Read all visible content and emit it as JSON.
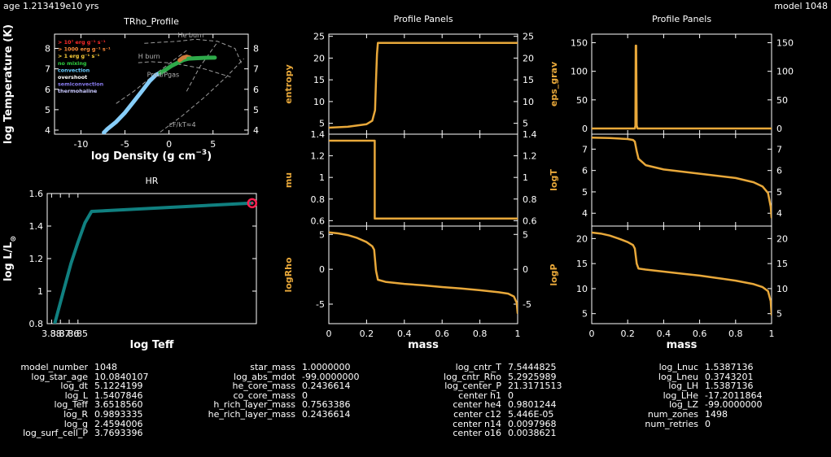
{
  "header": {
    "age": "age 1.213419e10 yrs",
    "model": "model 1048"
  },
  "chart_data": [
    {
      "id": "trho",
      "type": "line",
      "title": "TRho_Profile",
      "xlabel": "log Density (g cm",
      "xlabel_sup": "−3",
      "xlabel_end": ")",
      "ylabel": "log Temperature (K)",
      "xlim": [
        -13,
        9
      ],
      "ylim": [
        3.8,
        8.7
      ],
      "xticks": [
        "-10",
        "-5",
        "0",
        "5"
      ],
      "xtick_values": [
        -10,
        -5,
        0,
        5
      ],
      "yticks": [
        "4",
        "5",
        "6",
        "7",
        "8"
      ],
      "ytick_values": [
        4,
        5,
        6,
        7,
        8
      ],
      "legend": [
        {
          "label": "> 10⁷ erg g⁻¹ s⁻¹",
          "color": "#ff2a2a"
        },
        {
          "label": "> 1000 erg g⁻¹ s⁻¹",
          "color": "#ff8c3a"
        },
        {
          "label": "> 1 erg g⁻¹ s⁻¹",
          "color": "#ffd23a"
        },
        {
          "label": "no mixing",
          "color": "#2ecc40"
        },
        {
          "label": "convection",
          "color": "#66ccff"
        },
        {
          "label": "overshoot",
          "color": "#ffffff"
        },
        {
          "label": "semiconvection",
          "color": "#8a7cf0"
        },
        {
          "label": "thermohaline",
          "color": "#c8c8ff"
        }
      ],
      "annotations": [
        {
          "text": "He burn",
          "x": 1.0,
          "y": 8.55
        },
        {
          "text": "H burn",
          "x": -3.5,
          "y": 7.5
        },
        {
          "text": "Prad/Pgas",
          "x": -2.5,
          "y": 6.6
        },
        {
          "text": "εF/kT≈4",
          "x": 0.0,
          "y": 4.15
        }
      ],
      "series": [
        {
          "color": "#87cefa",
          "x": [
            -7.4,
            -7.0,
            -6.0,
            -5.0,
            -4.0,
            -3.0,
            -2.2,
            -1.5,
            -1.0
          ],
          "y": [
            3.88,
            4.05,
            4.4,
            4.85,
            5.4,
            5.95,
            6.4,
            6.7,
            6.8
          ]
        },
        {
          "color": "#2eaa4a",
          "x": [
            -1.0,
            -0.4,
            0.3,
            1.0,
            1.6,
            2.2
          ],
          "y": [
            6.8,
            6.95,
            7.15,
            7.3,
            7.43,
            7.5
          ]
        },
        {
          "color": "#d07c3c",
          "x": [
            1.2,
            1.6,
            2.0,
            2.4
          ],
          "y": [
            7.42,
            7.55,
            7.6,
            7.55
          ]
        },
        {
          "color": "#2eaa4a",
          "x": [
            2.2,
            3.0,
            4.0,
            5.2
          ],
          "y": [
            7.5,
            7.52,
            7.54,
            7.55
          ]
        }
      ],
      "guides": [
        {
          "x": [
            -2.8,
            -1.0,
            1.0,
            3.0,
            5.5,
            7.5,
            8.3
          ],
          "y": [
            8.25,
            8.3,
            8.35,
            8.45,
            8.35,
            8.0,
            7.2
          ]
        },
        {
          "x": [
            -3.5,
            -2.0,
            -0.2,
            1.5,
            4.0,
            7.0
          ],
          "y": [
            7.3,
            7.35,
            7.3,
            7.2,
            7.0,
            6.6
          ]
        },
        {
          "x": [
            -6.0,
            -4.0,
            -2.0,
            0.0,
            2.0
          ],
          "y": [
            5.3,
            5.9,
            6.6,
            7.25,
            7.9
          ]
        },
        {
          "x": [
            -1.0,
            1.5,
            4.0,
            6.5,
            8.5
          ],
          "y": [
            3.9,
            4.7,
            5.6,
            6.6,
            7.5
          ]
        },
        {
          "x": [
            2.0,
            3.5,
            5.5
          ],
          "y": [
            5.9,
            7.1,
            8.3
          ]
        }
      ]
    },
    {
      "id": "hr",
      "type": "line",
      "title": "HR",
      "xlabel": "log Teff",
      "ylabel": "log L/L",
      "ylabel_sub": "⊙",
      "xlim": [
        3.885,
        3.647
      ],
      "ylim": [
        0.8,
        1.6
      ],
      "xticks": [
        "3.88",
        "3.87",
        "3.86",
        "3.85"
      ],
      "xtick_values": [
        3.88,
        3.87,
        3.86,
        3.85
      ],
      "yticks": [
        "0.8",
        "1",
        "1.2",
        "1.4",
        "1.6"
      ],
      "ytick_values": [
        0.8,
        1.0,
        1.2,
        1.4,
        1.6
      ],
      "series": [
        {
          "color": "#108080",
          "x": [
            3.8765,
            3.8725,
            3.866,
            3.858,
            3.85,
            3.842,
            3.8345,
            3.6518
          ],
          "y": [
            0.8,
            0.88,
            1.01,
            1.17,
            1.3,
            1.42,
            1.49,
            1.5408
          ]
        }
      ],
      "current_point": {
        "x": 3.6518,
        "y": 1.5408,
        "color": "#ff2050"
      }
    },
    {
      "id": "entropy",
      "type": "line",
      "title": "Profile Panels",
      "ylabel": "entropy",
      "xlim": [
        0,
        1
      ],
      "ylim": [
        2.5,
        25.5
      ],
      "yticks": [
        "5",
        "10",
        "15",
        "20",
        "25"
      ],
      "ytick_values": [
        5,
        10,
        15,
        20,
        25
      ],
      "series": [
        {
          "color": "#e8a83a",
          "x": [
            0,
            0.1,
            0.2,
            0.23,
            0.245,
            0.25,
            0.255,
            0.26,
            0.3,
            0.6,
            1.0
          ],
          "y": [
            4.0,
            4.2,
            4.8,
            5.6,
            8.0,
            15.0,
            21.0,
            23.5,
            23.5,
            23.5,
            23.5
          ]
        }
      ]
    },
    {
      "id": "mu",
      "type": "line",
      "ylabel": "mu",
      "xlim": [
        0,
        1
      ],
      "ylim": [
        0.55,
        1.4
      ],
      "yticks": [
        "0.6",
        "0.8",
        "1",
        "1.2",
        "1.4"
      ],
      "ytick_values": [
        0.6,
        0.8,
        1.0,
        1.2,
        1.4
      ],
      "series": [
        {
          "color": "#e8a83a",
          "x": [
            0,
            0.2,
            0.243,
            0.243,
            0.3,
            0.6,
            1.0
          ],
          "y": [
            1.34,
            1.34,
            1.34,
            0.62,
            0.62,
            0.62,
            0.62
          ]
        }
      ]
    },
    {
      "id": "logrho",
      "type": "line",
      "xlabel": "mass",
      "ylabel": "logRho",
      "xlim": [
        0,
        1
      ],
      "ylim": [
        -7.8,
        6.2
      ],
      "xticks": [
        "0",
        "0.2",
        "0.4",
        "0.6",
        "0.8",
        "1"
      ],
      "xtick_values": [
        0,
        0.2,
        0.4,
        0.6,
        0.8,
        1.0
      ],
      "yticks": [
        "-5",
        "0",
        "5"
      ],
      "ytick_values": [
        -5,
        0,
        5
      ],
      "series": [
        {
          "color": "#e8a83a",
          "x": [
            0,
            0.05,
            0.1,
            0.15,
            0.2,
            0.23,
            0.24,
            0.25,
            0.26,
            0.3,
            0.4,
            0.5,
            0.6,
            0.7,
            0.8,
            0.9,
            0.95,
            0.98,
            0.995,
            1.0
          ],
          "y": [
            5.3,
            5.15,
            4.9,
            4.5,
            3.9,
            3.3,
            2.8,
            -0.2,
            -1.5,
            -1.8,
            -2.1,
            -2.3,
            -2.55,
            -2.75,
            -3.0,
            -3.3,
            -3.5,
            -3.9,
            -4.8,
            -6.3
          ]
        }
      ]
    },
    {
      "id": "eps_grav",
      "type": "line",
      "title": "Profile Panels",
      "ylabel": "eps_grav",
      "xlim": [
        0,
        1
      ],
      "ylim": [
        -10,
        165
      ],
      "yticks": [
        "0",
        "50",
        "100",
        "150"
      ],
      "ytick_values": [
        0,
        50,
        100,
        150
      ],
      "series": [
        {
          "color": "#e8a83a",
          "x": [
            0,
            0.24,
            0.243,
            0.245,
            0.247,
            0.25,
            0.255,
            0.3,
            1.0
          ],
          "y": [
            0,
            0,
            5,
            145,
            145,
            5,
            0,
            0,
            0
          ]
        }
      ]
    },
    {
      "id": "logt",
      "type": "line",
      "ylabel": "logT",
      "xlim": [
        0,
        1
      ],
      "ylim": [
        3.4,
        7.7
      ],
      "yticks": [
        "4",
        "5",
        "6",
        "7"
      ],
      "ytick_values": [
        4,
        5,
        6,
        7
      ],
      "series": [
        {
          "color": "#e8a83a",
          "x": [
            0,
            0.1,
            0.2,
            0.23,
            0.24,
            0.25,
            0.26,
            0.3,
            0.4,
            0.5,
            0.6,
            0.7,
            0.8,
            0.9,
            0.95,
            0.98,
            0.995,
            1.0
          ],
          "y": [
            7.54,
            7.52,
            7.47,
            7.43,
            7.35,
            6.9,
            6.55,
            6.25,
            6.05,
            5.95,
            5.85,
            5.75,
            5.65,
            5.45,
            5.25,
            4.95,
            4.3,
            3.8
          ]
        }
      ]
    },
    {
      "id": "logp",
      "type": "line",
      "xlabel": "mass",
      "ylabel": "logP",
      "xlim": [
        0,
        1
      ],
      "ylim": [
        3.0,
        22.5
      ],
      "xticks": [
        "0",
        "0.2",
        "0.4",
        "0.6",
        "0.8",
        "1"
      ],
      "xtick_values": [
        0,
        0.2,
        0.4,
        0.6,
        0.8,
        1.0
      ],
      "yticks": [
        "5",
        "10",
        "15",
        "20"
      ],
      "ytick_values": [
        5,
        10,
        15,
        20
      ],
      "series": [
        {
          "color": "#e8a83a",
          "x": [
            0,
            0.05,
            0.1,
            0.15,
            0.2,
            0.23,
            0.24,
            0.25,
            0.26,
            0.3,
            0.4,
            0.5,
            0.6,
            0.7,
            0.8,
            0.9,
            0.95,
            0.98,
            0.995,
            1.0
          ],
          "y": [
            21.2,
            21.0,
            20.6,
            20.0,
            19.3,
            18.7,
            18.0,
            15.0,
            14.0,
            13.8,
            13.4,
            13.0,
            12.6,
            12.1,
            11.6,
            10.9,
            10.3,
            9.5,
            7.5,
            4.8
          ]
        }
      ]
    }
  ],
  "info": {
    "col1": [
      {
        "key": "model_number",
        "value": "1048"
      },
      {
        "key": "log_star_age",
        "value": "10.0840107"
      },
      {
        "key": "log_dt",
        "value": "5.1224199"
      },
      {
        "key": "log_L",
        "value": "1.5407846"
      },
      {
        "key": "log_Teff",
        "value": "3.6518560"
      },
      {
        "key": "log_R",
        "value": "0.9893335"
      },
      {
        "key": "log_g",
        "value": "2.4594006"
      },
      {
        "key": "log_surf_cell_P",
        "value": "3.7693396"
      }
    ],
    "col2": [
      {
        "key": "star_mass",
        "value": "1.0000000"
      },
      {
        "key": "log_abs_mdot",
        "value": "-99.0000000"
      },
      {
        "key": "he_core_mass",
        "value": "0.2436614"
      },
      {
        "key": "co_core_mass",
        "value": "0"
      },
      {
        "key": "h_rich_layer_mass",
        "value": "0.7563386"
      },
      {
        "key": "he_rich_layer_mass",
        "value": "0.2436614"
      }
    ],
    "col3": [
      {
        "key": "log_cntr_T",
        "value": "7.5444825"
      },
      {
        "key": "log_cntr_Rho",
        "value": "5.2925989"
      },
      {
        "key": "log_center_P",
        "value": "21.3171513"
      },
      {
        "key": "center h1",
        "value": "0"
      },
      {
        "key": "center he4",
        "value": "0.9801244"
      },
      {
        "key": "center c12",
        "value": "5.446E-05"
      },
      {
        "key": "center n14",
        "value": "0.0097968"
      },
      {
        "key": "center o16",
        "value": "0.0038621"
      }
    ],
    "col4": [
      {
        "key": "log_Lnuc",
        "value": "1.5387136"
      },
      {
        "key": "log_Lneu",
        "value": "0.3743201"
      },
      {
        "key": "log_LH",
        "value": "1.5387136"
      },
      {
        "key": "log_LHe",
        "value": "-17.2011864"
      },
      {
        "key": "log_LZ",
        "value": "-99.0000000"
      },
      {
        "key": "num_zones",
        "value": "1498"
      },
      {
        "key": "num_retries",
        "value": "0"
      }
    ]
  },
  "colors": {
    "background": "#000000",
    "foreground": "#ffffff",
    "profile_line": "#e8a83a",
    "hr_track": "#108080"
  }
}
